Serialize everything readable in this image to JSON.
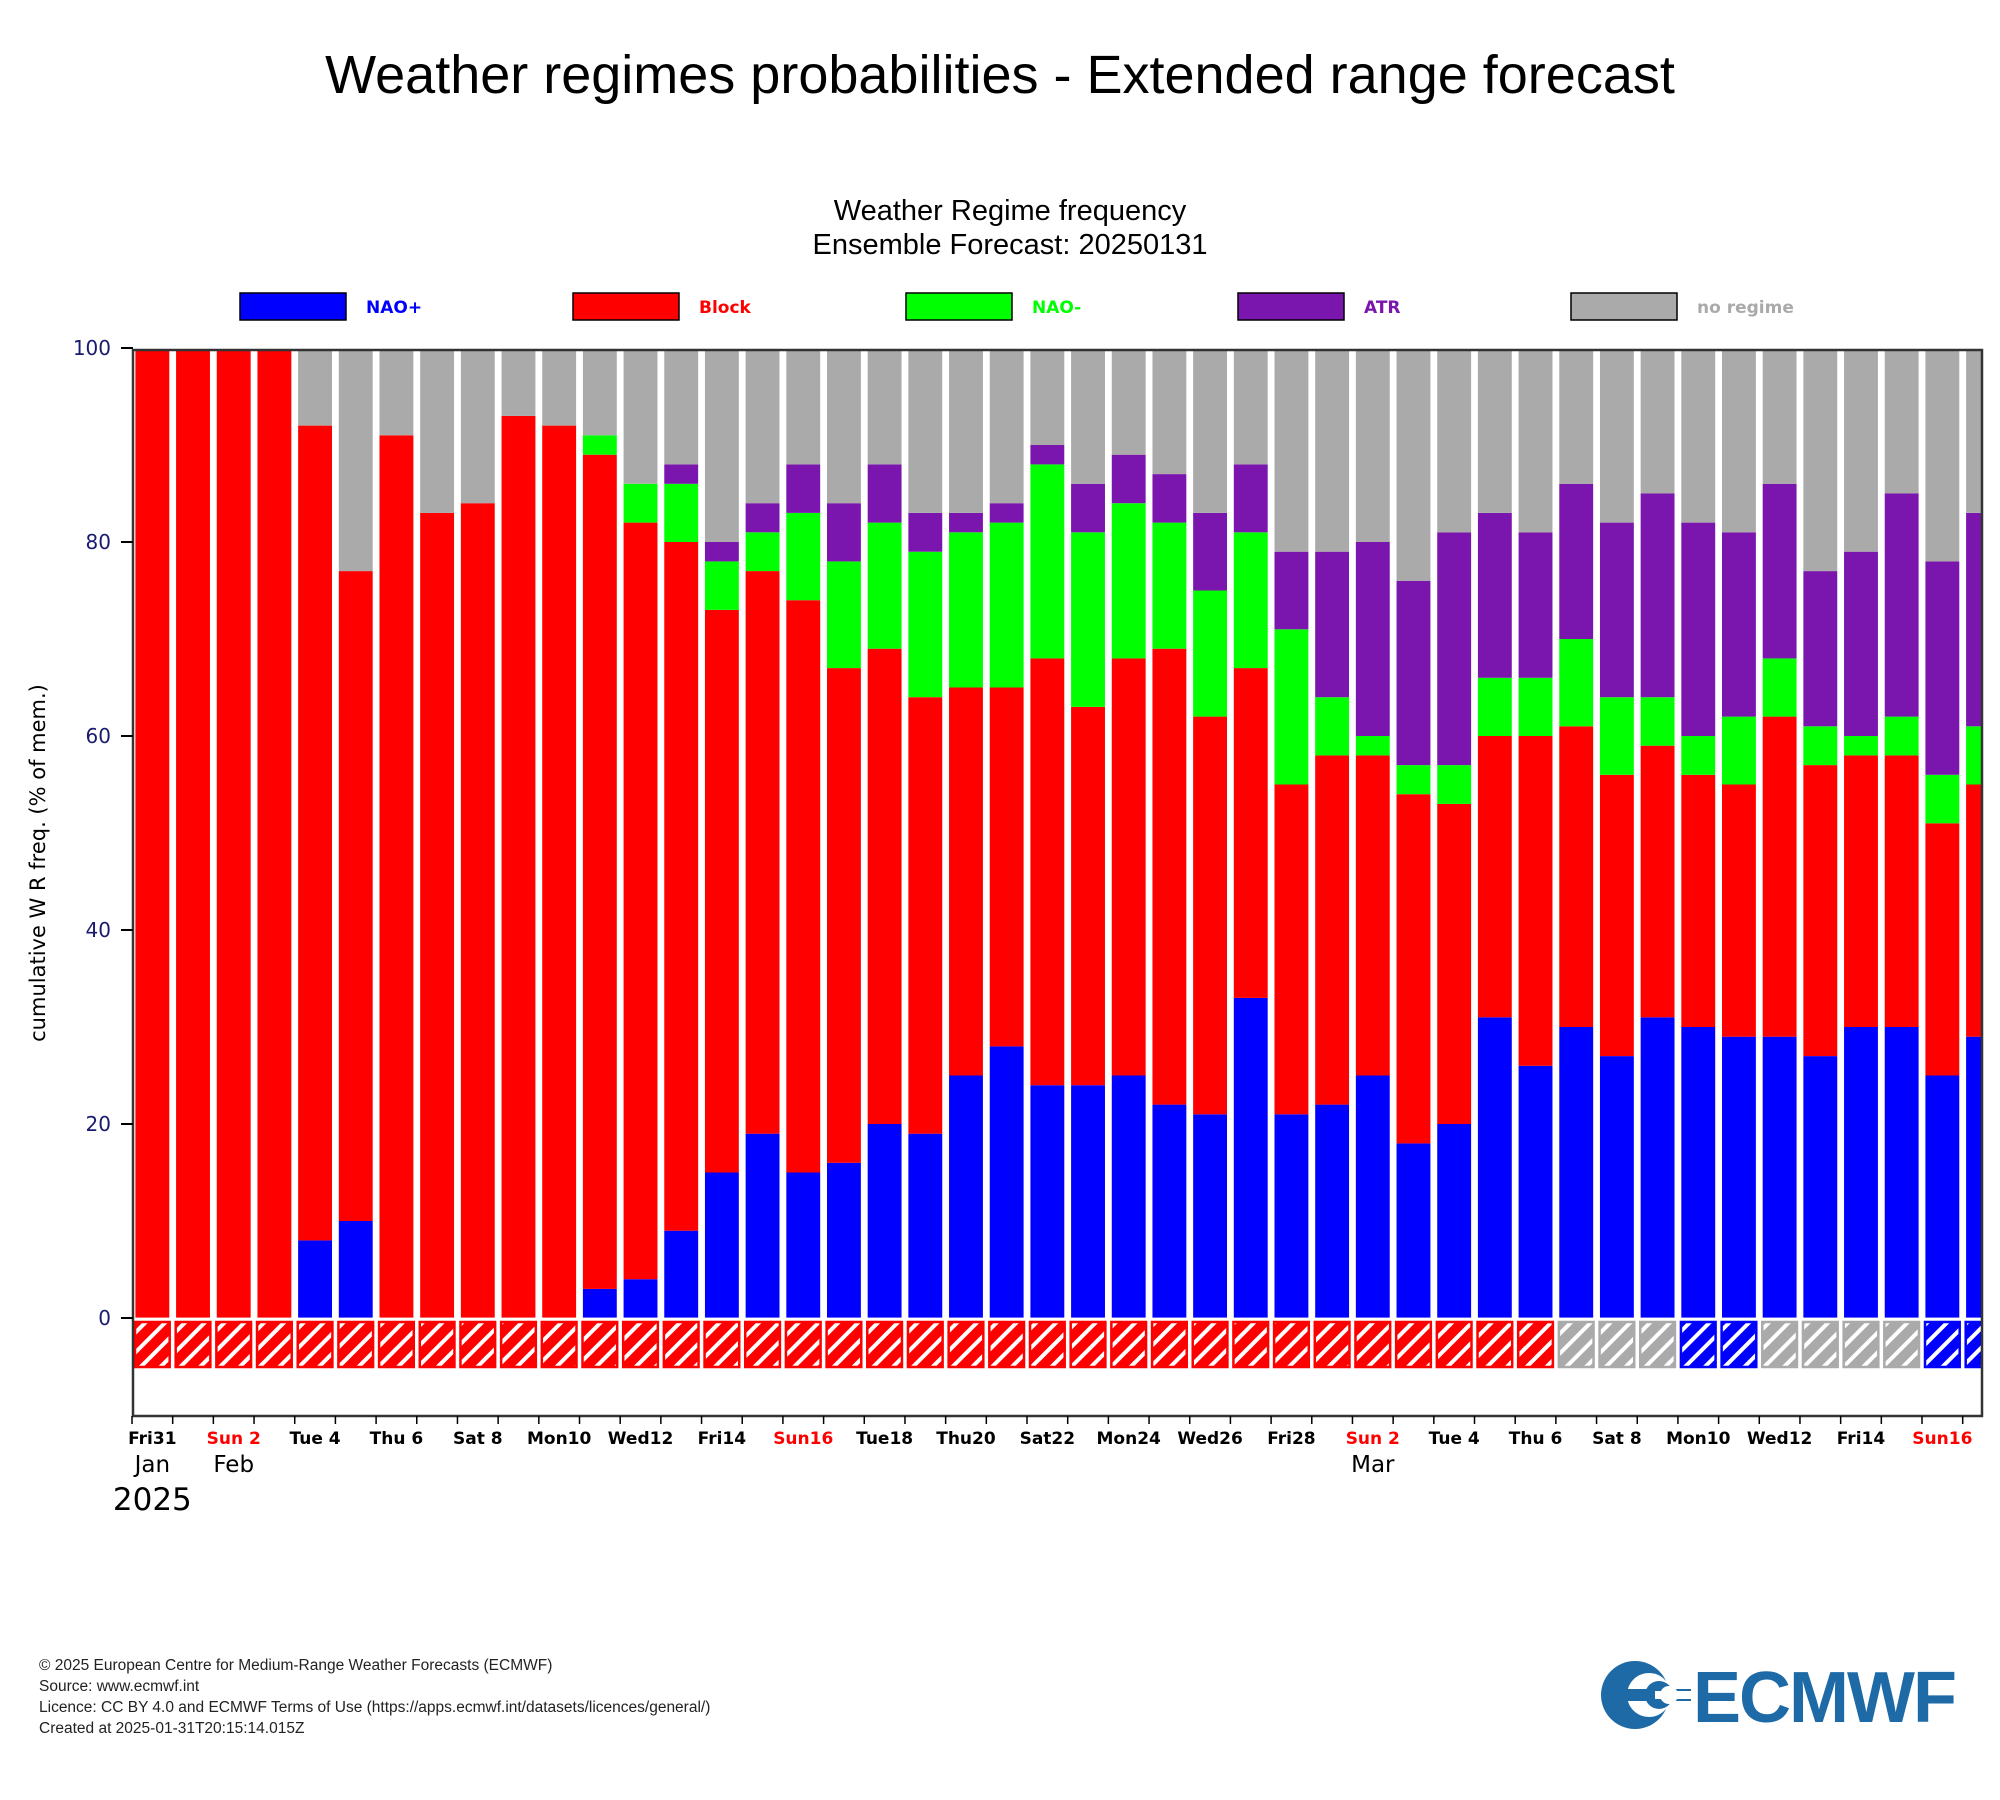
{
  "page": {
    "title": "Weather regimes probabilities - Extended range forecast"
  },
  "chart_data": {
    "type": "bar",
    "stacked": true,
    "title": "Weather Regime frequency",
    "subtitle": "Ensemble Forecast: 20250131",
    "ylabel": "cumulative W R freq. (% of mem.)",
    "ylim": [
      0,
      100
    ],
    "yticks": [
      0,
      20,
      40,
      60,
      80,
      100
    ],
    "xlabel": "",
    "dates": [
      "2025-01-31",
      "2025-02-01",
      "2025-02-02",
      "2025-02-03",
      "2025-02-04",
      "2025-02-05",
      "2025-02-06",
      "2025-02-07",
      "2025-02-08",
      "2025-02-09",
      "2025-02-10",
      "2025-02-11",
      "2025-02-12",
      "2025-02-13",
      "2025-02-14",
      "2025-02-15",
      "2025-02-16",
      "2025-02-17",
      "2025-02-18",
      "2025-02-19",
      "2025-02-20",
      "2025-02-21",
      "2025-02-22",
      "2025-02-23",
      "2025-02-24",
      "2025-02-25",
      "2025-02-26",
      "2025-02-27",
      "2025-02-28",
      "2025-03-01",
      "2025-03-02",
      "2025-03-03",
      "2025-03-04",
      "2025-03-05",
      "2025-03-06",
      "2025-03-07",
      "2025-03-08",
      "2025-03-09",
      "2025-03-10",
      "2025-03-11",
      "2025-03-12",
      "2025-03-13",
      "2025-03-14",
      "2025-03-15",
      "2025-03-16",
      "2025-03-17"
    ],
    "tick_labels": [
      {
        "date": "2025-01-31",
        "text": "Fri31",
        "color": "#000000"
      },
      {
        "date": "2025-02-02",
        "text": "Sun 2",
        "color": "#ff0000"
      },
      {
        "date": "2025-02-04",
        "text": "Tue 4",
        "color": "#000000"
      },
      {
        "date": "2025-02-06",
        "text": "Thu 6",
        "color": "#000000"
      },
      {
        "date": "2025-02-08",
        "text": "Sat 8",
        "color": "#000000"
      },
      {
        "date": "2025-02-10",
        "text": "Mon10",
        "color": "#000000"
      },
      {
        "date": "2025-02-12",
        "text": "Wed12",
        "color": "#000000"
      },
      {
        "date": "2025-02-14",
        "text": "Fri14",
        "color": "#000000"
      },
      {
        "date": "2025-02-16",
        "text": "Sun16",
        "color": "#ff0000"
      },
      {
        "date": "2025-02-18",
        "text": "Tue18",
        "color": "#000000"
      },
      {
        "date": "2025-02-20",
        "text": "Thu20",
        "color": "#000000"
      },
      {
        "date": "2025-02-22",
        "text": "Sat22",
        "color": "#000000"
      },
      {
        "date": "2025-02-24",
        "text": "Mon24",
        "color": "#000000"
      },
      {
        "date": "2025-02-26",
        "text": "Wed26",
        "color": "#000000"
      },
      {
        "date": "2025-02-28",
        "text": "Fri28",
        "color": "#000000"
      },
      {
        "date": "2025-03-02",
        "text": "Sun 2",
        "color": "#ff0000"
      },
      {
        "date": "2025-03-04",
        "text": "Tue 4",
        "color": "#000000"
      },
      {
        "date": "2025-03-06",
        "text": "Thu 6",
        "color": "#000000"
      },
      {
        "date": "2025-03-08",
        "text": "Sat 8",
        "color": "#000000"
      },
      {
        "date": "2025-03-10",
        "text": "Mon10",
        "color": "#000000"
      },
      {
        "date": "2025-03-12",
        "text": "Wed12",
        "color": "#000000"
      },
      {
        "date": "2025-03-14",
        "text": "Fri14",
        "color": "#000000"
      },
      {
        "date": "2025-03-16",
        "text": "Sun16",
        "color": "#ff0000"
      }
    ],
    "month_labels": [
      {
        "date": "2025-01-31",
        "text": "Jan"
      },
      {
        "date": "2025-02-02",
        "text": "Feb"
      },
      {
        "date": "2025-03-02",
        "text": "Mar"
      }
    ],
    "year_label": {
      "date": "2025-01-31",
      "text": "2025"
    },
    "series": [
      {
        "name": "NAO+",
        "color": "#0000ff",
        "values": [
          0,
          0,
          0,
          0,
          8,
          10,
          0,
          0,
          0,
          0,
          0,
          3,
          4,
          9,
          15,
          19,
          15,
          16,
          20,
          19,
          25,
          28,
          24,
          24,
          25,
          22,
          21,
          33,
          21,
          22,
          25,
          18,
          20,
          31,
          26,
          30,
          27,
          31,
          30,
          29,
          29,
          27,
          30,
          30,
          25,
          29
        ]
      },
      {
        "name": "Block",
        "color": "#ff0000",
        "values": [
          100,
          100,
          100,
          100,
          84,
          67,
          91,
          83,
          84,
          93,
          92,
          86,
          78,
          71,
          58,
          58,
          59,
          51,
          49,
          45,
          40,
          37,
          44,
          39,
          43,
          47,
          41,
          34,
          34,
          36,
          33,
          36,
          33,
          29,
          34,
          31,
          29,
          28,
          26,
          26,
          33,
          30,
          28,
          28,
          26,
          26
        ]
      },
      {
        "name": "NAO-",
        "color": "#00ff00",
        "values": [
          0,
          0,
          0,
          0,
          0,
          0,
          0,
          0,
          0,
          0,
          0,
          2,
          4,
          6,
          5,
          4,
          9,
          11,
          13,
          15,
          16,
          17,
          20,
          18,
          16,
          13,
          13,
          14,
          16,
          6,
          2,
          3,
          4,
          6,
          6,
          9,
          8,
          5,
          4,
          7,
          6,
          4,
          2,
          4,
          5,
          6
        ]
      },
      {
        "name": "ATR",
        "color": "#7a16ad",
        "values": [
          0,
          0,
          0,
          0,
          0,
          0,
          0,
          0,
          0,
          0,
          0,
          0,
          0,
          2,
          2,
          3,
          5,
          6,
          6,
          4,
          2,
          2,
          2,
          5,
          5,
          5,
          8,
          7,
          8,
          15,
          20,
          19,
          24,
          17,
          15,
          16,
          18,
          21,
          22,
          19,
          18,
          16,
          19,
          23,
          22,
          22
        ]
      },
      {
        "name": "no regime",
        "color": "#aaaaaa",
        "values": [
          0,
          0,
          0,
          0,
          8,
          23,
          9,
          17,
          16,
          7,
          8,
          9,
          14,
          12,
          20,
          16,
          12,
          16,
          12,
          17,
          17,
          16,
          10,
          14,
          11,
          13,
          17,
          12,
          21,
          21,
          20,
          24,
          19,
          17,
          19,
          14,
          18,
          15,
          18,
          19,
          14,
          23,
          21,
          15,
          22,
          17
        ]
      }
    ],
    "regime_markers": {
      "description_legend": "hatched boxes below zero line show dominant regime",
      "colors": [
        "#ff0000",
        "#ff0000",
        "#ff0000",
        "#ff0000",
        "#ff0000",
        "#ff0000",
        "#ff0000",
        "#ff0000",
        "#ff0000",
        "#ff0000",
        "#ff0000",
        "#ff0000",
        "#ff0000",
        "#ff0000",
        "#ff0000",
        "#ff0000",
        "#ff0000",
        "#ff0000",
        "#ff0000",
        "#ff0000",
        "#ff0000",
        "#ff0000",
        "#ff0000",
        "#ff0000",
        "#ff0000",
        "#ff0000",
        "#ff0000",
        "#ff0000",
        "#ff0000",
        "#ff0000",
        "#ff0000",
        "#ff0000",
        "#ff0000",
        "#ff0000",
        "#ff0000",
        "#aaaaaa",
        "#aaaaaa",
        "#aaaaaa",
        "#0000ff",
        "#0000ff",
        "#aaaaaa",
        "#aaaaaa",
        "#aaaaaa",
        "#aaaaaa",
        "#0000ff",
        "#0000ff"
      ]
    },
    "legend_placement": "top",
    "grid": false
  },
  "footer": {
    "line1": "© 2025 European Centre for Medium-Range Weather Forecasts (ECMWF)",
    "line2": "Source: www.ecmwf.int",
    "line3": "Licence: CC BY 4.0 and ECMWF Terms of Use (https://apps.ecmwf.int/datasets/licences/general/)",
    "line4": "Created at 2025-01-31T20:15:14.015Z"
  },
  "logo": {
    "text": "ECMWF",
    "color": "#1d6aa6"
  }
}
